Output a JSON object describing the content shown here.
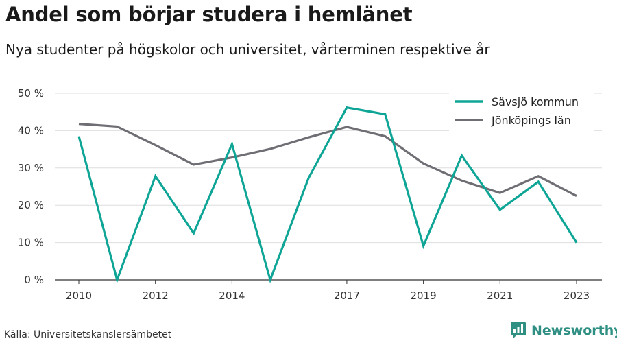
{
  "header": {
    "title": "Andel som börjar studera i hemlänet",
    "subtitle": "Nya studenter på högskolor och universitet, vårterminen respektive år"
  },
  "footer": {
    "source": "Källa: Universitetskanslersämbetet",
    "brand_name": "Newsworthy",
    "brand_icon": "newsworthy-logo-icon",
    "brand_color": "#2f8f83"
  },
  "chart_data": {
    "type": "line",
    "x": [
      2010,
      2011,
      2012,
      2013,
      2014,
      2015,
      2016,
      2017,
      2018,
      2019,
      2020,
      2021,
      2022,
      2023
    ],
    "xticks": [
      {
        "value": 2010,
        "label": "2010"
      },
      {
        "value": 2012,
        "label": "2012"
      },
      {
        "value": 2014,
        "label": "2014"
      },
      {
        "value": 2017,
        "label": "2017"
      },
      {
        "value": 2019,
        "label": "2019"
      },
      {
        "value": 2021,
        "label": "2021"
      },
      {
        "value": 2023,
        "label": "2023"
      }
    ],
    "yticks": [
      {
        "value": 0,
        "label": "0 %"
      },
      {
        "value": 10,
        "label": "10 %"
      },
      {
        "value": 20,
        "label": "20 %"
      },
      {
        "value": 30,
        "label": "30 %"
      },
      {
        "value": 40,
        "label": "40 %"
      },
      {
        "value": 50,
        "label": "50 %"
      }
    ],
    "xlim": [
      2010,
      2023
    ],
    "ylim": [
      0,
      50
    ],
    "grid": true,
    "legend_position": "top-right",
    "series": [
      {
        "name": "Sävsjö kommun",
        "color": "#0fa596",
        "values": [
          38.5,
          0,
          27.8,
          12.5,
          36.4,
          0,
          27.3,
          46.2,
          44.4,
          9.1,
          33.3,
          18.8,
          26.3,
          10.0
        ]
      },
      {
        "name": "Jönköpings län",
        "color": "#6f6e74",
        "values": [
          41.8,
          41.1,
          36.1,
          30.9,
          32.8,
          35.1,
          38.2,
          41.0,
          38.5,
          31.2,
          26.6,
          23.3,
          27.8,
          22.5
        ]
      }
    ]
  }
}
